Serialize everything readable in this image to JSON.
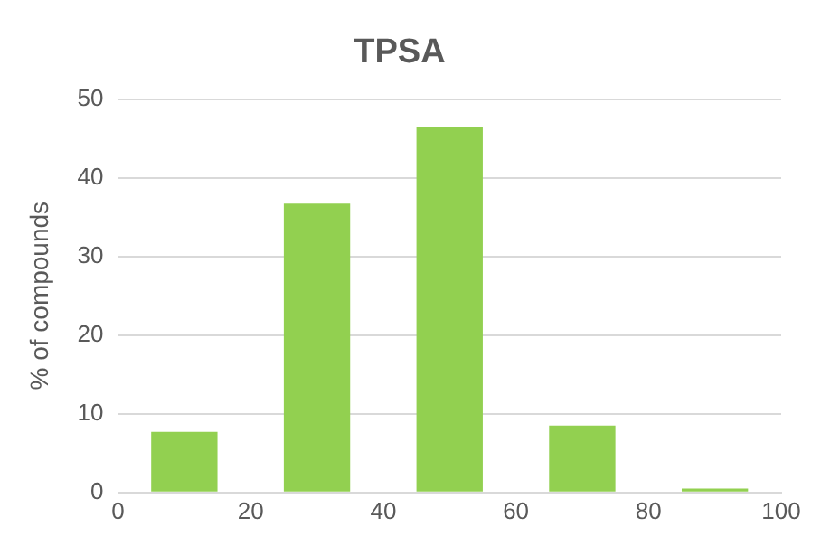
{
  "chart_data": {
    "type": "histogram",
    "title": "TPSA",
    "ylabel": "% of compounds",
    "bins": [
      0,
      20,
      40,
      60,
      80,
      100
    ],
    "values": [
      7.7,
      36.7,
      46.4,
      8.5,
      0.5
    ],
    "color": "#92d050",
    "xlim": [
      0,
      100
    ],
    "xticks": [
      0,
      20,
      40,
      60,
      80,
      100
    ],
    "ylim": [
      0,
      50
    ],
    "yticks": [
      0,
      10,
      20,
      30,
      40,
      50
    ],
    "grid": "y",
    "legend": false
  }
}
